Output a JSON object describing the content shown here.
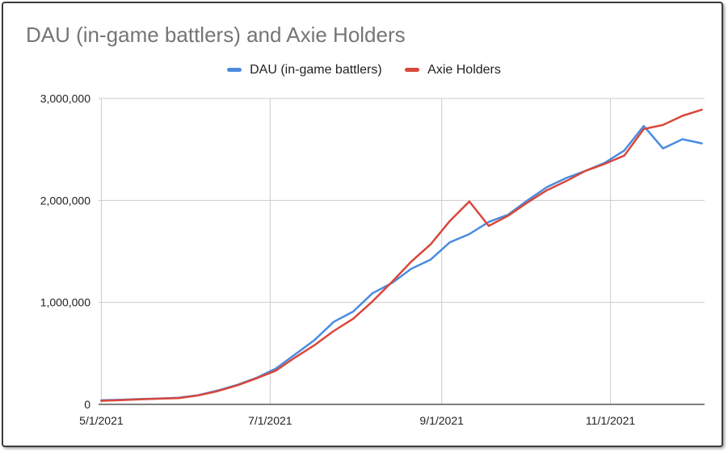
{
  "chart_data": {
    "type": "line",
    "title": "DAU (in-game battlers) and Axie Holders",
    "xlabel": "",
    "ylabel": "",
    "x_tick_labels": [
      "5/1/2021",
      "7/1/2021",
      "9/1/2021",
      "11/1/2021"
    ],
    "y_tick_labels": [
      "0",
      "1,000,000",
      "2,000,000",
      "3,000,000"
    ],
    "ylim": [
      0,
      3000000
    ],
    "xlim": [
      "2021-04-30",
      "2021-12-05"
    ],
    "grid": true,
    "legend_position": "top-center",
    "x": [
      "2021-05-01",
      "2021-05-08",
      "2021-05-15",
      "2021-05-22",
      "2021-05-29",
      "2021-06-05",
      "2021-06-12",
      "2021-06-19",
      "2021-06-26",
      "2021-07-03",
      "2021-07-10",
      "2021-07-17",
      "2021-07-24",
      "2021-07-31",
      "2021-08-07",
      "2021-08-14",
      "2021-08-21",
      "2021-08-28",
      "2021-09-04",
      "2021-09-11",
      "2021-09-18",
      "2021-09-25",
      "2021-10-02",
      "2021-10-09",
      "2021-10-16",
      "2021-10-23",
      "2021-10-30",
      "2021-11-06",
      "2021-11-13",
      "2021-11-20",
      "2021-11-27",
      "2021-12-04"
    ],
    "series": [
      {
        "name": "DAU (in-game battlers)",
        "color": "#4a8be0",
        "values": [
          40000,
          45000,
          52000,
          58000,
          65000,
          90000,
          135000,
          190000,
          260000,
          350000,
          490000,
          630000,
          810000,
          910000,
          1090000,
          1190000,
          1330000,
          1420000,
          1590000,
          1670000,
          1790000,
          1860000,
          2000000,
          2130000,
          2220000,
          2290000,
          2370000,
          2490000,
          2730000,
          2510000,
          2600000,
          2560000
        ]
      },
      {
        "name": "Axie Holders",
        "color": "#d9473a",
        "values": [
          35000,
          42000,
          50000,
          56000,
          62000,
          88000,
          130000,
          185000,
          255000,
          330000,
          460000,
          580000,
          720000,
          840000,
          1010000,
          1200000,
          1400000,
          1570000,
          1800000,
          1990000,
          1750000,
          1850000,
          1980000,
          2100000,
          2190000,
          2290000,
          2360000,
          2440000,
          2700000,
          2740000,
          2830000,
          2890000
        ]
      }
    ]
  }
}
